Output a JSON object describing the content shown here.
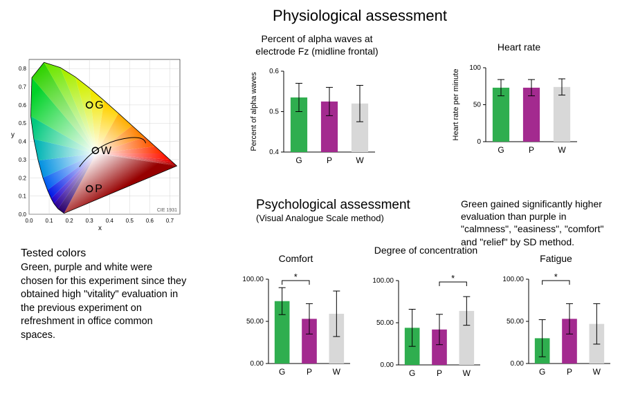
{
  "page_title": "Physiological assessment",
  "colors": {
    "G": "#2fae4f",
    "P": "#a32a8f",
    "W": "#d8d8d8",
    "axis": "#000000",
    "tick": "#000000",
    "error": "#000000",
    "background": "#ffffff"
  },
  "typography": {
    "title_fontsize": 22,
    "chart_title_fontsize": 14,
    "axis_fontsize": 10,
    "body_fontsize": 14
  },
  "cie": {
    "x_label": "x",
    "y_label": "y",
    "x_ticks": [
      0.0,
      0.1,
      0.2,
      0.3,
      0.4,
      0.5,
      0.6,
      0.7
    ],
    "y_ticks": [
      0.0,
      0.1,
      0.2,
      0.3,
      0.4,
      0.5,
      0.6,
      0.7,
      0.8
    ],
    "markers": {
      "G": {
        "label": "G",
        "x": 0.3,
        "y": 0.6
      },
      "W": {
        "label": "W",
        "x": 0.33,
        "y": 0.35
      },
      "P": {
        "label": "P",
        "x": 0.3,
        "y": 0.14
      }
    },
    "footer": "CIE 1931"
  },
  "tested": {
    "heading": "Tested colors",
    "text": "Green, purple and white were chosen for this experiment since they obtained high \"vitality\" evaluation in the previous experiment on refreshment in office common spaces."
  },
  "physio": {
    "alpha": {
      "title": "Percent of alpha waves at electrode Fz (midline frontal)",
      "y_label": "Percent of alpha waves",
      "ylim": [
        0.4,
        0.6
      ],
      "yticks": [
        0.4,
        0.5,
        0.6
      ],
      "categories": [
        "G",
        "P",
        "W"
      ],
      "values": [
        0.535,
        0.525,
        0.52
      ],
      "errors": [
        0.035,
        0.035,
        0.045
      ],
      "bar_width": 0.55
    },
    "heart": {
      "title": "Heart rate",
      "y_label": "Heart rate per minute",
      "ylim": [
        0,
        100
      ],
      "yticks": [
        0,
        50,
        100
      ],
      "categories": [
        "G",
        "P",
        "W"
      ],
      "values": [
        73,
        73,
        74
      ],
      "errors": [
        11,
        11,
        11
      ],
      "bar_width": 0.55
    }
  },
  "psych": {
    "section_title": "Psychological assessment",
    "section_sub": "(Visual Analogue Scale method)",
    "note": "Green gained significantly higher evaluation than purple in \"calmness\", \"easiness\", \"comfort\" and \"relief\" by SD method.",
    "charts": {
      "comfort": {
        "title": "Comfort",
        "ylim": [
          0,
          100
        ],
        "yticks": [
          0.0,
          50.0,
          100.0
        ],
        "categories": [
          "G",
          "P",
          "W"
        ],
        "values": [
          74,
          53,
          59
        ],
        "errors": [
          16,
          18,
          27
        ],
        "sig": {
          "from": "G",
          "to": "P",
          "label": "*"
        }
      },
      "concentration": {
        "title": "Degree of concentration",
        "ylim": [
          0,
          100
        ],
        "yticks": [
          0.0,
          50.0,
          100.0
        ],
        "categories": [
          "G",
          "P",
          "W"
        ],
        "values": [
          44,
          42,
          64
        ],
        "errors": [
          22,
          18,
          17
        ],
        "sig": {
          "from": "P",
          "to": "W",
          "label": "*"
        }
      },
      "fatigue": {
        "title": "Fatigue",
        "ylim": [
          0,
          100
        ],
        "yticks": [
          0.0,
          50.0,
          100.0
        ],
        "categories": [
          "G",
          "P",
          "W"
        ],
        "values": [
          30,
          53,
          47
        ],
        "errors": [
          22,
          18,
          24
        ],
        "sig": {
          "from": "G",
          "to": "P",
          "label": "*"
        }
      }
    }
  }
}
